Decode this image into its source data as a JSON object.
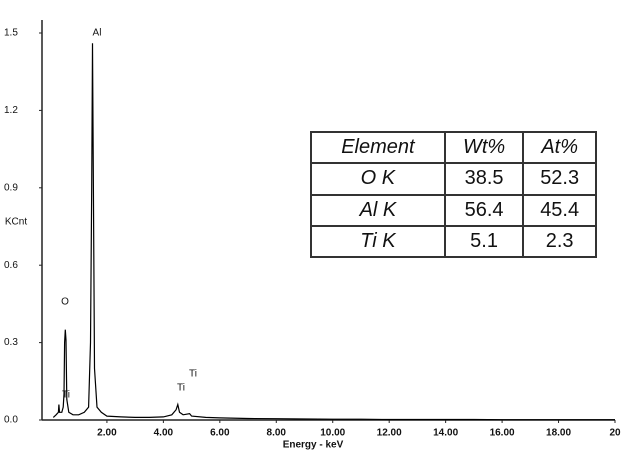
{
  "chart_data": {
    "type": "line",
    "ylabel": "KCnt",
    "xlabel": "Energy - keV",
    "color": "#000000",
    "x": [
      0.1,
      0.2,
      0.28,
      0.3,
      0.32,
      0.4,
      0.45,
      0.48,
      0.5,
      0.525,
      0.55,
      0.58,
      0.65,
      0.8,
      1.0,
      1.2,
      1.35,
      1.42,
      1.46,
      1.49,
      1.52,
      1.56,
      1.65,
      1.8,
      2.0,
      2.5,
      3.0,
      3.5,
      4.0,
      4.3,
      4.45,
      4.51,
      4.57,
      4.7,
      4.93,
      5.0,
      5.5,
      6,
      7,
      8,
      9,
      10,
      11,
      12,
      13,
      14,
      15,
      16,
      17,
      18,
      19,
      20
    ],
    "values": [
      0.01,
      0.02,
      0.03,
      0.06,
      0.03,
      0.03,
      0.05,
      0.1,
      0.3,
      0.35,
      0.31,
      0.08,
      0.03,
      0.02,
      0.02,
      0.03,
      0.05,
      0.3,
      0.9,
      1.46,
      0.9,
      0.2,
      0.05,
      0.03,
      0.015,
      0.012,
      0.01,
      0.01,
      0.012,
      0.02,
      0.04,
      0.06,
      0.03,
      0.02,
      0.025,
      0.015,
      0.01,
      0.008,
      0.006,
      0.005,
      0.004,
      0.003,
      0.003,
      0.002,
      0.002,
      0.002,
      0.002,
      0.001,
      0.001,
      0.001,
      0.001,
      0.001
    ],
    "xlim": [
      -0.3,
      20
    ],
    "ylim": [
      0,
      1.5
    ],
    "xticks": [
      {
        "value": 2,
        "label": "2.00"
      },
      {
        "value": 4,
        "label": "4.00"
      },
      {
        "value": 6,
        "label": "6.00"
      },
      {
        "value": 8,
        "label": "8.00"
      },
      {
        "value": 10,
        "label": "10.00"
      },
      {
        "value": 12,
        "label": "12.00"
      },
      {
        "value": 14,
        "label": "14.00"
      },
      {
        "value": 16,
        "label": "16.00"
      },
      {
        "value": 18,
        "label": "18.00"
      },
      20
    ],
    "yticks": [
      {
        "value": 0,
        "label": "0.0"
      },
      0.3,
      0.6,
      0.9,
      1.2,
      1.5
    ],
    "annotations": [
      "Al",
      "O",
      "Ti",
      "Ti",
      "Ti"
    ]
  },
  "table": {
    "header": [
      "Element",
      "Wt%",
      "At%"
    ],
    "rows": [
      [
        "O K",
        38.5,
        52.3
      ],
      [
        "Al K",
        56.4,
        45.4
      ],
      [
        "Ti K",
        5.1,
        2.3
      ]
    ]
  }
}
